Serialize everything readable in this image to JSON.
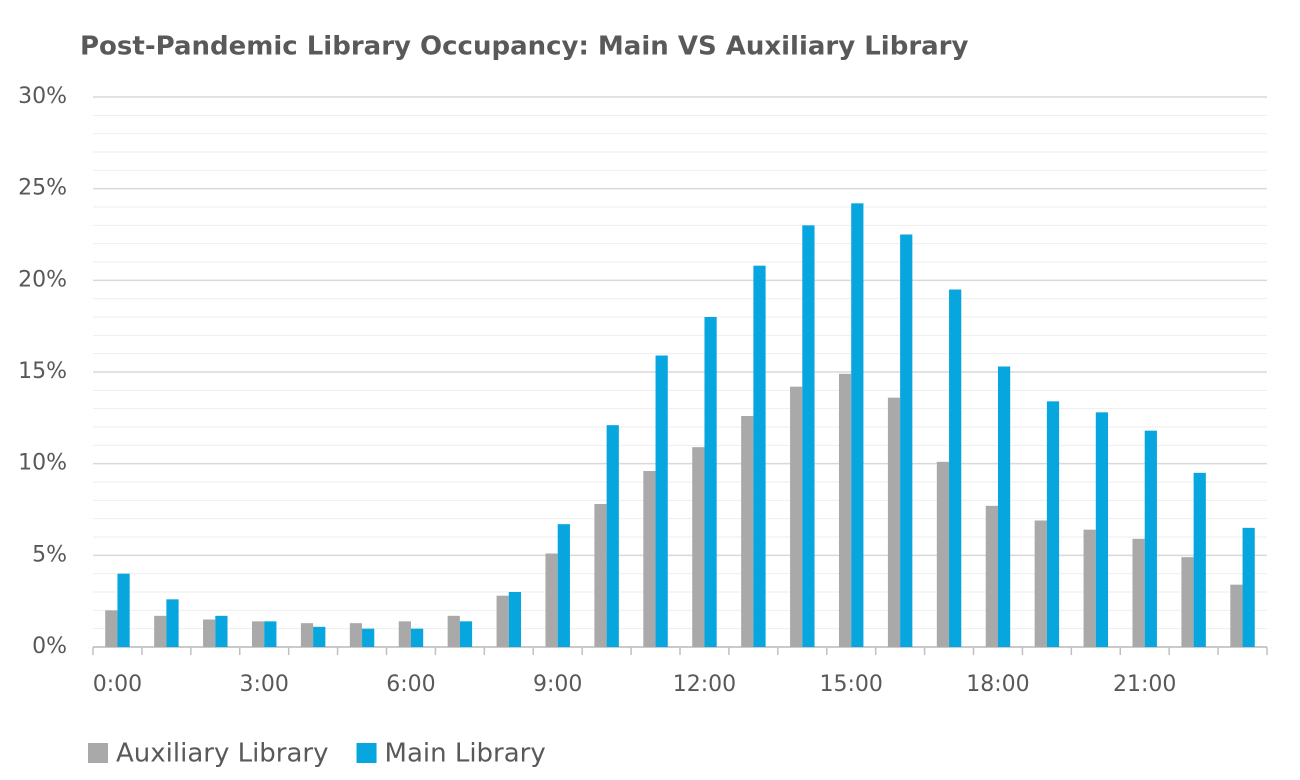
{
  "chart_data": {
    "type": "bar",
    "title": "Post-Pandemic Library Occupancy: Main VS Auxiliary Library",
    "categories": [
      "0:00",
      null,
      null,
      "3:00",
      null,
      null,
      "6:00",
      null,
      null,
      "9:00",
      null,
      null,
      "12:00",
      null,
      null,
      "15:00",
      null,
      null,
      "18:00",
      null,
      null,
      "21:00",
      null,
      null
    ],
    "series": [
      {
        "name": "Auxiliary Library",
        "color": "#a9a9a9",
        "values": [
          2.0,
          1.7,
          1.5,
          1.4,
          1.3,
          1.3,
          1.4,
          1.7,
          2.8,
          5.1,
          7.8,
          9.6,
          10.9,
          12.6,
          14.2,
          14.9,
          13.6,
          10.1,
          7.7,
          6.9,
          6.4,
          5.9,
          4.9,
          3.4
        ]
      },
      {
        "name": "Main Library",
        "color": "#08a6de",
        "values": [
          4.0,
          2.6,
          1.7,
          1.4,
          1.1,
          1.0,
          1.0,
          1.4,
          3.0,
          6.7,
          12.1,
          15.9,
          18.0,
          20.8,
          23.0,
          24.2,
          22.5,
          19.5,
          15.3,
          13.4,
          12.8,
          11.8,
          9.5,
          6.5
        ]
      }
    ],
    "ylim": [
      0,
      30
    ],
    "yticks": [
      {
        "value": 0,
        "label": "0%"
      },
      {
        "value": 5,
        "label": "5%"
      },
      {
        "value": 10,
        "label": "10%"
      },
      {
        "value": 15,
        "label": "15%"
      },
      {
        "value": 20,
        "label": "20%"
      },
      {
        "value": 25,
        "label": "25%"
      },
      {
        "value": 30,
        "label": "30%"
      }
    ],
    "grid": true,
    "minor_grid": true,
    "legend": "bottom"
  }
}
